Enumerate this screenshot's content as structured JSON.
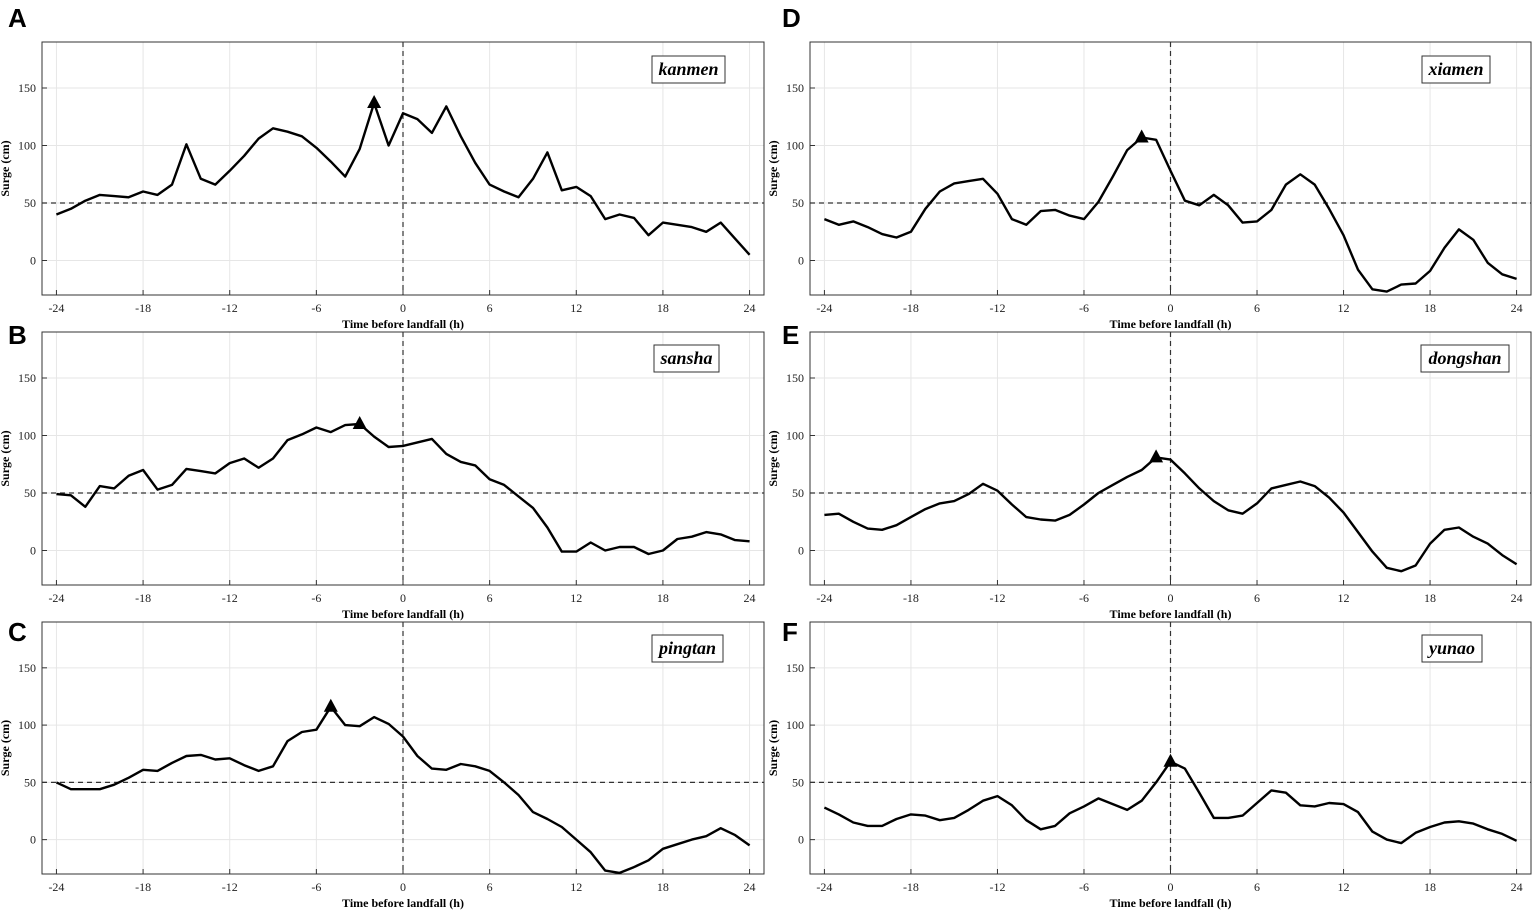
{
  "colors": {
    "line": "#000000",
    "grid": "#e6e6e6",
    "axis": "#333333"
  },
  "chart_data": [
    {
      "type": "line",
      "panel": "A",
      "station": "kanmen",
      "xlabel": "Time before landfall (h)",
      "ylabel": "Surge (cm)",
      "xlim": [
        -25,
        25
      ],
      "ylim": [
        -30,
        190
      ],
      "xticks": [
        -24,
        -18,
        -12,
        -6,
        0,
        6,
        12,
        18,
        24
      ],
      "yticks": [
        0,
        50,
        100,
        150
      ],
      "reference_lines": {
        "y": 50,
        "x": 0
      },
      "peak": {
        "x": -2,
        "y": 137
      },
      "x": [
        -24,
        -23,
        -22,
        -21,
        -20,
        -19,
        -18,
        -17,
        -16,
        -15,
        -14,
        -13,
        -12,
        -11,
        -10,
        -9,
        -8,
        -7,
        -6,
        -5,
        -4,
        -3,
        -2,
        -1,
        0,
        1,
        2,
        3,
        4,
        5,
        6,
        7,
        8,
        9,
        10,
        11,
        12,
        13,
        14,
        15,
        16,
        17,
        18,
        19,
        20,
        21,
        22,
        23,
        24
      ],
      "values": [
        40,
        45,
        52,
        57,
        56,
        55,
        60,
        57,
        66,
        101,
        71,
        66,
        78,
        91,
        106,
        115,
        112,
        108,
        98,
        86,
        73,
        97,
        137,
        100,
        128,
        123,
        111,
        134,
        108,
        85,
        66,
        60,
        55,
        71,
        94,
        61,
        64,
        56,
        36,
        40,
        37,
        22,
        33,
        31,
        29,
        25,
        33,
        19,
        5
      ]
    },
    {
      "type": "line",
      "panel": "B",
      "station": "sansha",
      "xlabel": "Time before landfall (h)",
      "ylabel": "Surge (cm)",
      "xlim": [
        -25,
        25
      ],
      "ylim": [
        -30,
        190
      ],
      "xticks": [
        -24,
        -18,
        -12,
        -6,
        0,
        6,
        12,
        18,
        24
      ],
      "yticks": [
        0,
        50,
        100,
        150
      ],
      "reference_lines": {
        "y": 50,
        "x": 0
      },
      "peak": {
        "x": -3,
        "y": 110
      },
      "x": [
        -24,
        -23,
        -22,
        -21,
        -20,
        -19,
        -18,
        -17,
        -16,
        -15,
        -14,
        -13,
        -12,
        -11,
        -10,
        -9,
        -8,
        -7,
        -6,
        -5,
        -4,
        -3,
        -2,
        -1,
        0,
        1,
        2,
        3,
        4,
        5,
        6,
        7,
        8,
        9,
        10,
        11,
        12,
        13,
        14,
        15,
        16,
        17,
        18,
        19,
        20,
        21,
        22,
        23,
        24
      ],
      "values": [
        49,
        48,
        38,
        56,
        54,
        65,
        70,
        53,
        57,
        71,
        69,
        67,
        76,
        80,
        72,
        80,
        96,
        101,
        107,
        103,
        109,
        110,
        99,
        90,
        91,
        94,
        97,
        84,
        77,
        74,
        62,
        57,
        47,
        37,
        20,
        -1,
        -1,
        7,
        0,
        3,
        3,
        -3,
        0,
        10,
        12,
        16,
        14,
        9,
        8
      ]
    },
    {
      "type": "line",
      "panel": "C",
      "station": "pingtan",
      "xlabel": "Time before landfall (h)",
      "ylabel": "Surge (cm)",
      "xlim": [
        -25,
        25
      ],
      "ylim": [
        -30,
        190
      ],
      "xticks": [
        -24,
        -18,
        -12,
        -6,
        0,
        6,
        12,
        18,
        24
      ],
      "yticks": [
        0,
        50,
        100,
        150
      ],
      "reference_lines": {
        "y": 50,
        "x": 0
      },
      "peak": {
        "x": -5,
        "y": 116
      },
      "x": [
        -24,
        -23,
        -22,
        -21,
        -20,
        -19,
        -18,
        -17,
        -16,
        -15,
        -14,
        -13,
        -12,
        -11,
        -10,
        -9,
        -8,
        -7,
        -6,
        -5,
        -4,
        -3,
        -2,
        -1,
        0,
        1,
        2,
        3,
        4,
        5,
        6,
        7,
        8,
        9,
        10,
        11,
        12,
        13,
        14,
        15,
        16,
        17,
        18,
        19,
        20,
        21,
        22,
        23,
        24
      ],
      "values": [
        50,
        44,
        44,
        44,
        48,
        54,
        61,
        60,
        67,
        73,
        74,
        70,
        71,
        65,
        60,
        64,
        86,
        94,
        96,
        116,
        100,
        99,
        107,
        101,
        90,
        73,
        62,
        61,
        66,
        64,
        60,
        50,
        39,
        24,
        18,
        11,
        0,
        -11,
        -27,
        -29,
        -24,
        -18,
        -8,
        -4,
        0,
        3,
        10,
        4,
        -5
      ]
    },
    {
      "type": "line",
      "panel": "D",
      "station": "xiamen",
      "xlabel": "Time before landfall (h)",
      "ylabel": "Surge (cm)",
      "xlim": [
        -25,
        25
      ],
      "ylim": [
        -30,
        190
      ],
      "xticks": [
        -24,
        -18,
        -12,
        -6,
        0,
        6,
        12,
        18,
        24
      ],
      "yticks": [
        0,
        50,
        100,
        150
      ],
      "reference_lines": {
        "y": 50,
        "x": 0
      },
      "peak": {
        "x": -2,
        "y": 107
      },
      "x": [
        -24,
        -23,
        -22,
        -21,
        -20,
        -19,
        -18,
        -17,
        -16,
        -15,
        -14,
        -13,
        -12,
        -11,
        -10,
        -9,
        -8,
        -7,
        -6,
        -5,
        -4,
        -3,
        -2,
        -1,
        0,
        1,
        2,
        3,
        4,
        5,
        6,
        7,
        8,
        9,
        10,
        11,
        12,
        13,
        14,
        15,
        16,
        17,
        18,
        19,
        20,
        21,
        22,
        23,
        24
      ],
      "values": [
        36,
        31,
        34,
        29,
        23,
        20,
        25,
        45,
        60,
        67,
        69,
        71,
        58,
        36,
        31,
        43,
        44,
        39,
        36,
        51,
        73,
        96,
        107,
        105,
        78,
        52,
        48,
        57,
        48,
        33,
        34,
        44,
        66,
        75,
        66,
        45,
        22,
        -8,
        -25,
        -27,
        -21,
        -20,
        -9,
        11,
        27,
        18,
        -2,
        -12,
        -16
      ]
    },
    {
      "type": "line",
      "panel": "E",
      "station": "dongshan",
      "xlabel": "Time before landfall (h)",
      "ylabel": "Surge (cm)",
      "xlim": [
        -25,
        25
      ],
      "ylim": [
        -30,
        190
      ],
      "xticks": [
        -24,
        -18,
        -12,
        -6,
        0,
        6,
        12,
        18,
        24
      ],
      "yticks": [
        0,
        50,
        100,
        150
      ],
      "reference_lines": {
        "y": 50,
        "x": 0
      },
      "peak": {
        "x": -1,
        "y": 81
      },
      "x": [
        -24,
        -23,
        -22,
        -21,
        -20,
        -19,
        -18,
        -17,
        -16,
        -15,
        -14,
        -13,
        -12,
        -11,
        -10,
        -9,
        -8,
        -7,
        -6,
        -5,
        -4,
        -3,
        -2,
        -1,
        0,
        1,
        2,
        3,
        4,
        5,
        6,
        7,
        8,
        9,
        10,
        11,
        12,
        13,
        14,
        15,
        16,
        17,
        18,
        19,
        20,
        21,
        22,
        23,
        24
      ],
      "values": [
        31,
        32,
        25,
        19,
        18,
        22,
        29,
        36,
        41,
        43,
        49,
        58,
        52,
        40,
        29,
        27,
        26,
        31,
        40,
        50,
        57,
        64,
        70,
        81,
        79,
        67,
        54,
        43,
        35,
        32,
        41,
        54,
        57,
        60,
        56,
        46,
        33,
        16,
        -1,
        -15,
        -18,
        -13,
        6,
        18,
        20,
        12,
        6,
        -4,
        -12
      ]
    },
    {
      "type": "line",
      "panel": "F",
      "station": "yunao",
      "xlabel": "Time before landfall (h)",
      "ylabel": "Surge (cm)",
      "xlim": [
        -25,
        25
      ],
      "ylim": [
        -30,
        190
      ],
      "xticks": [
        -24,
        -18,
        -12,
        -6,
        0,
        6,
        12,
        18,
        24
      ],
      "yticks": [
        0,
        50,
        100,
        150
      ],
      "reference_lines": {
        "y": 50,
        "x": 0
      },
      "peak": {
        "x": 0,
        "y": 68
      },
      "x": [
        -24,
        -23,
        -22,
        -21,
        -20,
        -19,
        -18,
        -17,
        -16,
        -15,
        -14,
        -13,
        -12,
        -11,
        -10,
        -9,
        -8,
        -7,
        -6,
        -5,
        -4,
        -3,
        -2,
        -1,
        0,
        1,
        2,
        3,
        4,
        5,
        6,
        7,
        8,
        9,
        10,
        11,
        12,
        13,
        14,
        15,
        16,
        17,
        18,
        19,
        20,
        21,
        22,
        23,
        24
      ],
      "values": [
        28,
        22,
        15,
        12,
        12,
        18,
        22,
        21,
        17,
        19,
        26,
        34,
        38,
        30,
        17,
        9,
        12,
        23,
        29,
        36,
        31,
        26,
        34,
        50,
        68,
        62,
        41,
        19,
        19,
        21,
        32,
        43,
        41,
        30,
        29,
        32,
        31,
        24,
        7,
        0,
        -3,
        6,
        11,
        15,
        16,
        14,
        9,
        5,
        -1
      ]
    }
  ]
}
